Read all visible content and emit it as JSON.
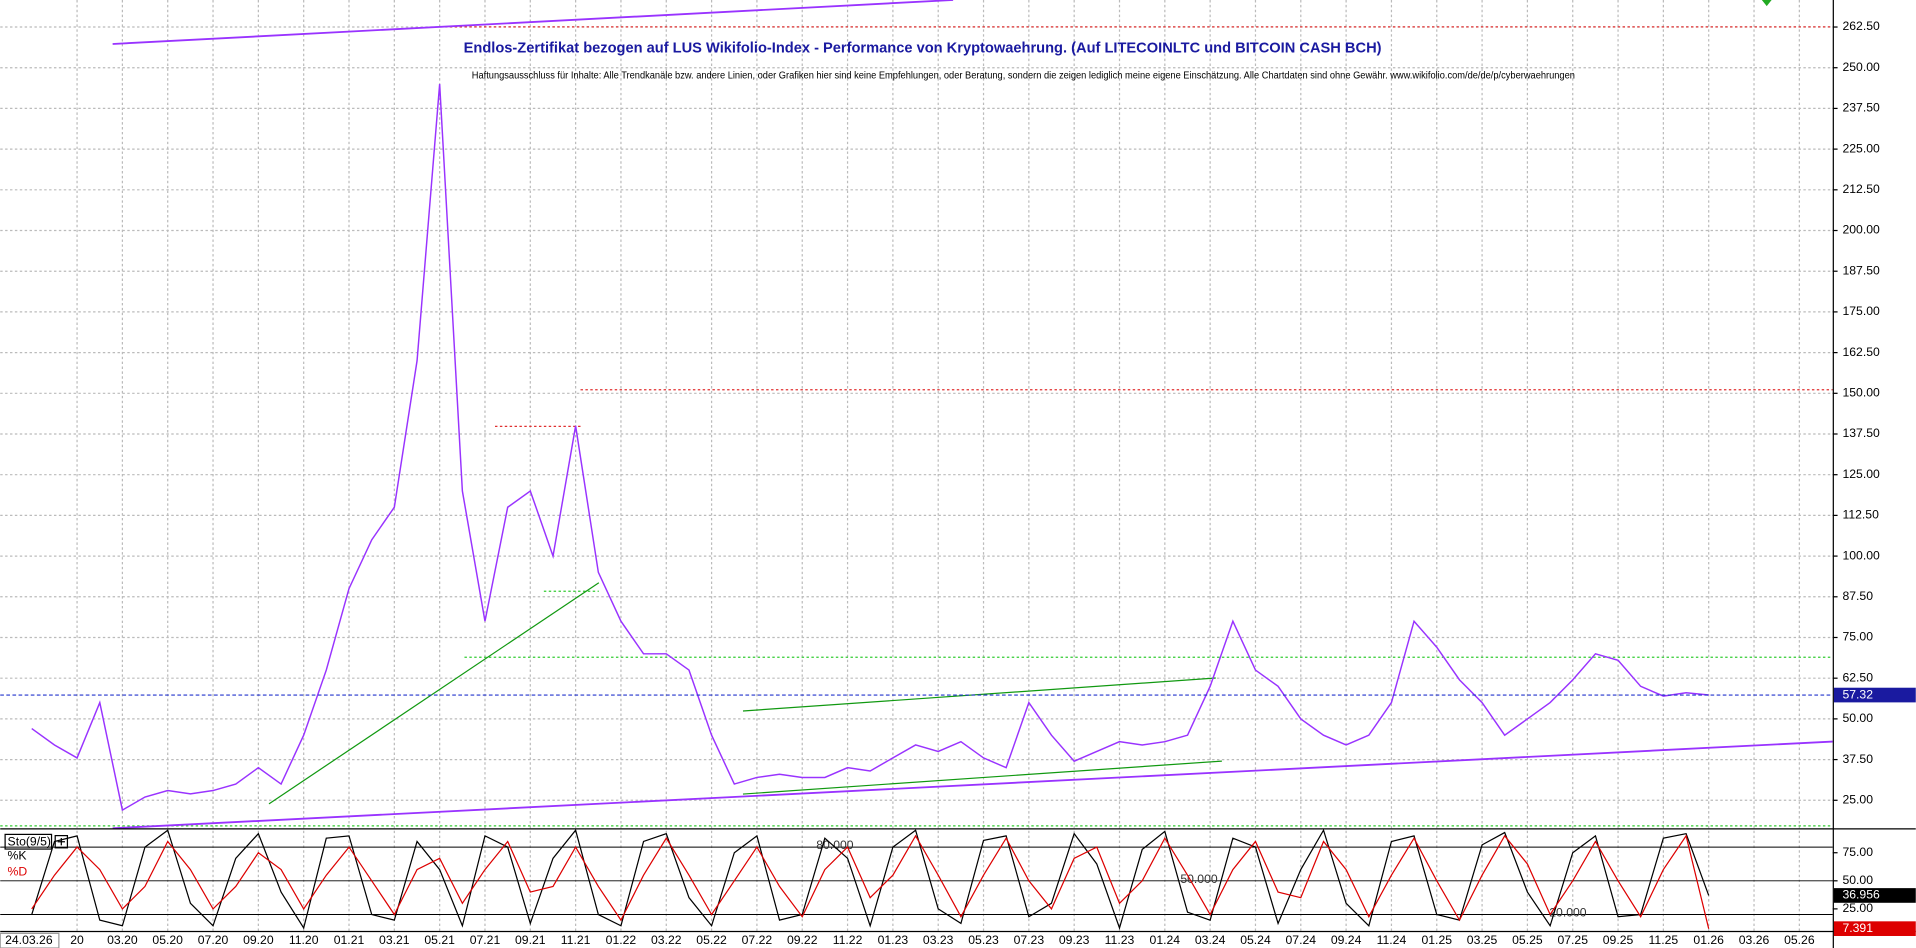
{
  "chart_data": {
    "type": "line",
    "title": "Endlos-Zertifikat bezogen auf LUS Wikifolio-Index - Performance von Kryptowaehrung. (Auf LITECOINLTC und BITCOIN CASH BCH)",
    "subtitle": "Haftungsausschluss für Inhalte: Alle Trendkanäle bzw. andere Linien, oder Grafiken hier sind keine Empfehlungen, oder Beratung, sondern die zeigen lediglich meine eigene Einschätzung. Alle Chartdaten sind ohne Gewähr. www.wikifolio.com/de/de/p/cyberwaehrungen",
    "date_label": "24.03.26",
    "categories": [
      null,
      null,
      "20",
      null,
      "03.20",
      null,
      "05.20",
      null,
      "07.20",
      null,
      "09.20",
      null,
      "11.20",
      null,
      "01.21",
      null,
      "03.21",
      null,
      "05.21",
      null,
      "07.21",
      null,
      "09.21",
      null,
      "11.21",
      null,
      "01.22",
      null,
      "03.22",
      null,
      "05.22",
      null,
      "07.22",
      null,
      "09.22",
      null,
      "11.22",
      null,
      "01.23",
      null,
      "03.23",
      null,
      "05.23",
      null,
      "07.23",
      null,
      "09.23",
      null,
      "11.23",
      null,
      "01.24",
      null,
      "03.24",
      null,
      "05.24",
      null,
      "07.24",
      null,
      "09.24",
      null,
      "11.24",
      null,
      "01.25",
      null,
      "03.25",
      null,
      "05.25",
      null,
      "07.25",
      null,
      "09.25",
      null,
      "11.25",
      null,
      "01.26",
      null,
      "03.26",
      null,
      "05.26"
    ],
    "series": [
      {
        "color": "#9933ff",
        "values": [
          47,
          42,
          38,
          55,
          22,
          26,
          28,
          27,
          28,
          30,
          35,
          30,
          45,
          65,
          90,
          105,
          115,
          160,
          245,
          120,
          80,
          115,
          120,
          100,
          140,
          95,
          80,
          70,
          70,
          65,
          45,
          30,
          32,
          33,
          32,
          32,
          35,
          34,
          38,
          42,
          40,
          43,
          38,
          35,
          55,
          45,
          37,
          40,
          43,
          42,
          43,
          45,
          60,
          80,
          65,
          60,
          50,
          45,
          42,
          45,
          55,
          80,
          72,
          62,
          55,
          45,
          50,
          55,
          62,
          70,
          68,
          60,
          57,
          58,
          57.32,
          null,
          null,
          null,
          null
        ]
      }
    ],
    "ylim": [
      16.4,
      270.8
    ],
    "yticks": [
      {
        "value": 25,
        "label": "25.00"
      },
      {
        "value": 37.5,
        "label": "37.50"
      },
      {
        "value": 50,
        "label": "50.00"
      },
      {
        "value": 62.5,
        "label": "62.50"
      },
      {
        "value": 75,
        "label": "75.00"
      },
      {
        "value": 87.5,
        "label": "87.50"
      },
      {
        "value": 100,
        "label": "100.00"
      },
      {
        "value": 112.5,
        "label": "112.50"
      },
      {
        "value": 125,
        "label": "125.00"
      },
      {
        "value": 137.5,
        "label": "137.50"
      },
      {
        "value": 150,
        "label": "150.00"
      },
      {
        "value": 162.5,
        "label": "162.50"
      },
      {
        "value": 175,
        "label": "175.00"
      },
      {
        "value": 187.5,
        "label": "187.50"
      },
      {
        "value": 200,
        "label": "200.00"
      },
      {
        "value": 212.5,
        "label": "212.50"
      },
      {
        "value": 225,
        "label": "225.00"
      },
      {
        "value": 237.5,
        "label": "237.50"
      },
      {
        "value": 250,
        "label": "250.00"
      },
      {
        "value": 262.5,
        "label": "262.50"
      }
    ],
    "grid": true,
    "indicator": {
      "title": "Sto(9/5)",
      "series": [
        {
          "name": "%K",
          "color": "#000000",
          "values": [
            20,
            85,
            90,
            15,
            10,
            80,
            95,
            30,
            10,
            70,
            92,
            40,
            8,
            88,
            90,
            20,
            15,
            85,
            60,
            10,
            90,
            80,
            12,
            70,
            95,
            20,
            10,
            85,
            92,
            35,
            10,
            75,
            90,
            15,
            20,
            88,
            70,
            10,
            80,
            95,
            25,
            12,
            86,
            90,
            18,
            30,
            92,
            65,
            8,
            78,
            94,
            22,
            15,
            88,
            80,
            12,
            60,
            95,
            30,
            10,
            85,
            90,
            20,
            15,
            82,
            93,
            40,
            10,
            75,
            90,
            18,
            20,
            88,
            92,
            36.956,
            null,
            null,
            null,
            null
          ]
        },
        {
          "name": "%D",
          "color": "#dd0000",
          "values": [
            25,
            55,
            80,
            60,
            25,
            45,
            85,
            60,
            25,
            45,
            75,
            60,
            25,
            55,
            80,
            50,
            20,
            60,
            70,
            30,
            60,
            85,
            40,
            45,
            80,
            45,
            15,
            55,
            88,
            55,
            20,
            50,
            80,
            45,
            18,
            60,
            80,
            35,
            55,
            90,
            55,
            18,
            55,
            88,
            50,
            25,
            70,
            80,
            30,
            50,
            88,
            55,
            20,
            60,
            85,
            40,
            35,
            85,
            60,
            18,
            55,
            88,
            50,
            15,
            55,
            90,
            65,
            20,
            50,
            85,
            50,
            18,
            60,
            90,
            7.391,
            null,
            null,
            null,
            null
          ]
        }
      ],
      "ylim": [
        5.4,
        94.6
      ],
      "yticks": [
        {
          "value": 75,
          "label": "75.00"
        },
        {
          "value": 50,
          "label": "50.00"
        },
        {
          "value": 25,
          "label": "25.00"
        }
      ],
      "levels": [
        {
          "value": 80,
          "label": "80.000"
        },
        {
          "value": 50,
          "label": "50.000"
        },
        {
          "value": 20,
          "label": "20.000"
        }
      ]
    }
  }
}
